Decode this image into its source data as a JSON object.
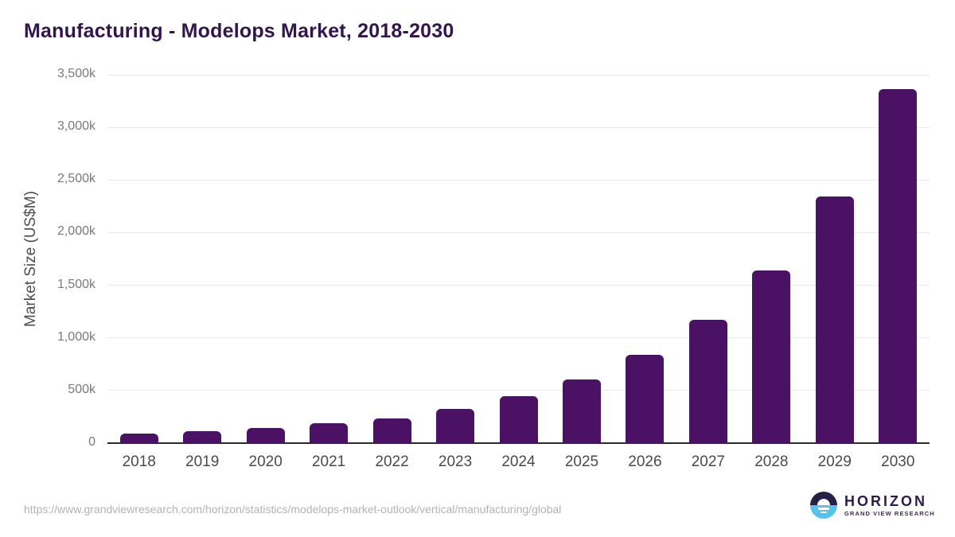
{
  "chart_data": {
    "type": "bar",
    "title": "Manufacturing - Modelops Market, 2018-2030",
    "xlabel": "",
    "ylabel": "Market Size (US$M)",
    "categories": [
      "2018",
      "2019",
      "2020",
      "2021",
      "2022",
      "2023",
      "2024",
      "2025",
      "2026",
      "2027",
      "2028",
      "2029",
      "2030"
    ],
    "values": [
      90,
      117,
      143,
      188,
      238,
      325,
      446,
      604,
      838,
      1170,
      1640,
      2347,
      3366
    ],
    "ylim": [
      0,
      3500
    ],
    "ytick_values": [
      0,
      500,
      1000,
      1500,
      2000,
      2500,
      3000,
      3500
    ],
    "ytick_labels": [
      "0",
      "500k",
      "1,000k",
      "1,500k",
      "2,000k",
      "2,500k",
      "3,000k",
      "3,500k"
    ],
    "grid": true,
    "legend": false,
    "bar_color": "#4a1164"
  },
  "footer": {
    "source_url": "https://www.grandviewresearch.com/horizon/statistics/modelops-market-outlook/vertical/manufacturing/global",
    "logo": {
      "name": "HORIZON",
      "subtitle": "GRAND VIEW RESEARCH"
    }
  },
  "colors": {
    "bar": "#4a1164",
    "title": "#33154b",
    "gridline": "#e9e9e9",
    "axis_line": "#2b2b2b",
    "tick_text": "#7a7a7a",
    "logo_dark": "#262048",
    "logo_blue": "#56c3ec"
  }
}
